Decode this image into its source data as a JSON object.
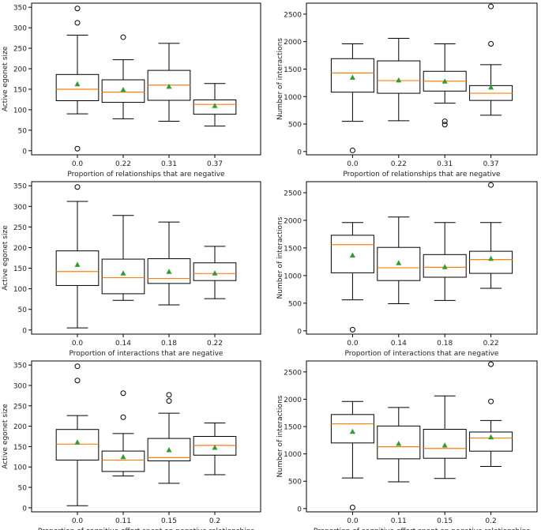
{
  "chart_data": [
    {
      "type": "box",
      "xlabel": "Proportion of relationships that are negative",
      "ylabel": "Active egonet size",
      "ylim": [
        -10,
        360
      ],
      "yticks": [
        0,
        50,
        100,
        150,
        200,
        250,
        300,
        350
      ],
      "categories": [
        "0.0",
        "0.22",
        "0.31",
        "0.37"
      ],
      "boxes": [
        {
          "whislo": 90,
          "q1": 122,
          "med": 150,
          "q3": 186,
          "whishi": 282,
          "mean": 163,
          "fliers": [
            5,
            312,
            347
          ]
        },
        {
          "whislo": 78,
          "q1": 118,
          "med": 143,
          "q3": 173,
          "whishi": 222,
          "mean": 149,
          "fliers": [
            277
          ]
        },
        {
          "whislo": 72,
          "q1": 123,
          "med": 160,
          "q3": 196,
          "whishi": 262,
          "mean": 157,
          "fliers": []
        },
        {
          "whislo": 60,
          "q1": 89,
          "med": 113,
          "q3": 124,
          "whishi": 164,
          "mean": 110,
          "fliers": []
        }
      ]
    },
    {
      "type": "box",
      "xlabel": "Proportion of relationships that are negative",
      "ylabel": "Number of interactions",
      "ylim": [
        -60,
        2700
      ],
      "yticks": [
        0,
        500,
        1000,
        1500,
        2000,
        2500
      ],
      "categories": [
        "0.0",
        "0.22",
        "0.31",
        "0.37"
      ],
      "boxes": [
        {
          "whislo": 550,
          "q1": 1080,
          "med": 1430,
          "q3": 1690,
          "whishi": 1960,
          "mean": 1350,
          "fliers": [
            20
          ]
        },
        {
          "whislo": 560,
          "q1": 1060,
          "med": 1290,
          "q3": 1650,
          "whishi": 2060,
          "mean": 1300,
          "fliers": []
        },
        {
          "whislo": 880,
          "q1": 1100,
          "med": 1280,
          "q3": 1460,
          "whishi": 1960,
          "mean": 1280,
          "fliers": [
            490,
            550
          ]
        },
        {
          "whislo": 660,
          "q1": 930,
          "med": 1060,
          "q3": 1200,
          "whishi": 1580,
          "mean": 1170,
          "fliers": [
            1960,
            2640
          ]
        }
      ]
    },
    {
      "type": "box",
      "xlabel": "Proportion of interactions that are negative",
      "ylabel": "Active egonet size",
      "ylim": [
        -10,
        360
      ],
      "yticks": [
        0,
        50,
        100,
        150,
        200,
        250,
        300,
        350
      ],
      "categories": [
        "0.0",
        "0.14",
        "0.18",
        "0.22"
      ],
      "boxes": [
        {
          "whislo": 5,
          "q1": 108,
          "med": 142,
          "q3": 192,
          "whishi": 312,
          "mean": 159,
          "fliers": [
            347
          ]
        },
        {
          "whislo": 72,
          "q1": 88,
          "med": 127,
          "q3": 172,
          "whishi": 278,
          "mean": 138,
          "fliers": []
        },
        {
          "whislo": 61,
          "q1": 113,
          "med": 125,
          "q3": 173,
          "whishi": 262,
          "mean": 142,
          "fliers": []
        },
        {
          "whislo": 76,
          "q1": 120,
          "med": 137,
          "q3": 163,
          "whishi": 203,
          "mean": 138,
          "fliers": []
        }
      ]
    },
    {
      "type": "box",
      "xlabel": "Proportion of interactions that are negative",
      "ylabel": "Number of interactions",
      "ylim": [
        -60,
        2700
      ],
      "yticks": [
        0,
        500,
        1000,
        1500,
        2000,
        2500
      ],
      "categories": [
        "0.0",
        "0.14",
        "0.18",
        "0.22"
      ],
      "boxes": [
        {
          "whislo": 560,
          "q1": 1050,
          "med": 1560,
          "q3": 1730,
          "whishi": 1960,
          "mean": 1370,
          "fliers": [
            20
          ]
        },
        {
          "whislo": 490,
          "q1": 910,
          "med": 1140,
          "q3": 1510,
          "whishi": 2060,
          "mean": 1230,
          "fliers": []
        },
        {
          "whislo": 550,
          "q1": 970,
          "med": 1150,
          "q3": 1380,
          "whishi": 1960,
          "mean": 1160,
          "fliers": []
        },
        {
          "whislo": 770,
          "q1": 1040,
          "med": 1290,
          "q3": 1440,
          "whishi": 1960,
          "mean": 1310,
          "fliers": [
            2640
          ]
        }
      ]
    },
    {
      "type": "box",
      "xlabel": "Proportion of cognitive effort spent on negative relationships",
      "ylabel": "Active egonet size",
      "ylim": [
        -10,
        360
      ],
      "yticks": [
        0,
        50,
        100,
        150,
        200,
        250,
        300,
        350
      ],
      "categories": [
        "0.0",
        "0.11",
        "0.15",
        "0.2"
      ],
      "boxes": [
        {
          "whislo": 5,
          "q1": 117,
          "med": 156,
          "q3": 192,
          "whishi": 226,
          "mean": 161,
          "fliers": [
            312,
            347
          ]
        },
        {
          "whislo": 78,
          "q1": 89,
          "med": 117,
          "q3": 139,
          "whishi": 182,
          "mean": 125,
          "fliers": [
            222,
            281
          ]
        },
        {
          "whislo": 60,
          "q1": 115,
          "med": 123,
          "q3": 170,
          "whishi": 232,
          "mean": 142,
          "fliers": [
            262,
            277
          ]
        },
        {
          "whislo": 81,
          "q1": 129,
          "med": 153,
          "q3": 175,
          "whishi": 208,
          "mean": 148,
          "fliers": []
        }
      ]
    },
    {
      "type": "box",
      "xlabel": "Proportion of cognitive effort spent on negative relationships",
      "ylabel": "Number of interactions",
      "ylim": [
        -60,
        2700
      ],
      "yticks": [
        0,
        500,
        1000,
        1500,
        2000,
        2500
      ],
      "categories": [
        "0.0",
        "0.11",
        "0.15",
        "0.2"
      ],
      "boxes": [
        {
          "whislo": 560,
          "q1": 1200,
          "med": 1550,
          "q3": 1720,
          "whishi": 1960,
          "mean": 1410,
          "fliers": [
            20
          ]
        },
        {
          "whislo": 490,
          "q1": 910,
          "med": 1130,
          "q3": 1510,
          "whishi": 1850,
          "mean": 1190,
          "fliers": []
        },
        {
          "whislo": 550,
          "q1": 920,
          "med": 1100,
          "q3": 1450,
          "whishi": 2060,
          "mean": 1160,
          "fliers": []
        },
        {
          "whislo": 770,
          "q1": 1050,
          "med": 1290,
          "q3": 1400,
          "whishi": 1610,
          "mean": 1310,
          "fliers": [
            1960,
            2640
          ]
        }
      ]
    }
  ],
  "colors": {
    "box": "#000000",
    "median": "#ff7f0e",
    "mean": "#2ca02c",
    "axes": "#000000"
  }
}
